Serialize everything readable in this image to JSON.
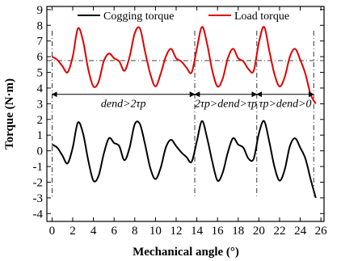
{
  "chart_data": {
    "type": "line",
    "title": "",
    "xlabel": "Mechanical angle (°)",
    "ylabel": "Torque (N·m)",
    "xlim": [
      -0.5,
      26.3
    ],
    "ylim": [
      -4.5,
      9.2
    ],
    "xticks": [
      0,
      2,
      4,
      6,
      8,
      10,
      12,
      14,
      16,
      18,
      20,
      22,
      24,
      26
    ],
    "yticks": [
      -4,
      -3,
      -2,
      -1,
      0,
      1,
      2,
      3,
      4,
      5,
      6,
      7,
      8,
      9
    ],
    "legend_position": "top",
    "grid": false,
    "series": [
      {
        "name": "Cogging torque",
        "color": "#000000",
        "x": [
          0,
          0.5,
          1,
          1.5,
          2,
          2.5,
          3,
          3.5,
          4,
          4.5,
          5,
          5.5,
          6,
          6.5,
          7,
          7.5,
          8,
          8.5,
          9,
          9.5,
          10,
          10.5,
          11,
          11.5,
          12,
          12.5,
          13,
          13.5,
          14,
          14.5,
          15,
          15.5,
          16,
          16.5,
          17,
          17.5,
          18,
          18.5,
          19,
          19.5,
          20,
          20.5,
          21,
          21.5,
          22,
          22.5,
          23,
          23.5,
          24,
          24.5,
          25,
          25.5
        ],
        "y": [
          0.4,
          0.2,
          -0.3,
          -0.8,
          0.2,
          1.8,
          1.1,
          -0.6,
          -1.9,
          -1.6,
          -0.2,
          0.8,
          0.5,
          0.3,
          -0.6,
          0.2,
          1.7,
          1.7,
          0.4,
          -1.1,
          -1.8,
          -1.1,
          0.2,
          0.7,
          0.3,
          -0.1,
          -0.4,
          -0.7,
          0.6,
          1.9,
          0.8,
          -0.7,
          -1.9,
          -1.4,
          -0.1,
          0.8,
          0.4,
          0.2,
          -0.5,
          -0.5,
          1.1,
          1.9,
          0.6,
          -1.0,
          -1.9,
          -1.2,
          0.3,
          0.8,
          0.2,
          -0.5,
          -1.8,
          -3.0
        ]
      },
      {
        "name": "Load torque",
        "color": "#e00000",
        "x": [
          0,
          0.5,
          1,
          1.5,
          2,
          2.5,
          3,
          3.5,
          4,
          4.5,
          5,
          5.5,
          6,
          6.5,
          7,
          7.5,
          8,
          8.5,
          9,
          9.5,
          10,
          10.5,
          11,
          11.5,
          12,
          12.5,
          13,
          13.5,
          14,
          14.5,
          15,
          15.5,
          16,
          16.5,
          17,
          17.5,
          18,
          18.5,
          19,
          19.5,
          20,
          20.5,
          21,
          21.5,
          22,
          22.5,
          23,
          23.5,
          24,
          24.5,
          25,
          25.5
        ],
        "y": [
          6.0,
          5.8,
          5.4,
          5.0,
          6.0,
          7.8,
          7.0,
          5.2,
          4.1,
          4.4,
          5.7,
          6.2,
          5.9,
          5.7,
          5.1,
          6.0,
          7.5,
          7.8,
          6.3,
          4.9,
          4.1,
          4.9,
          6.0,
          6.5,
          5.9,
          5.7,
          5.3,
          5.0,
          6.5,
          7.9,
          6.8,
          5.1,
          4.1,
          4.6,
          5.9,
          6.5,
          5.9,
          5.7,
          5.2,
          5.1,
          6.9,
          7.9,
          6.4,
          4.9,
          4.1,
          4.7,
          6.0,
          6.5,
          5.8,
          4.9,
          3.6,
          3.0
        ]
      }
    ],
    "reference_line_y": 5.75,
    "region_dividers_x": [
      0,
      13.8,
      19.8,
      25.3
    ],
    "region_labels": [
      {
        "text": "dend>2τp",
        "from": 0,
        "to": 13.8
      },
      {
        "text": "2τp>dend>τp",
        "from": 13.8,
        "to": 19.8
      },
      {
        "text": "τp>dend>0",
        "from": 19.8,
        "to": 25.3
      }
    ],
    "region_arrow_y": 3.6
  }
}
